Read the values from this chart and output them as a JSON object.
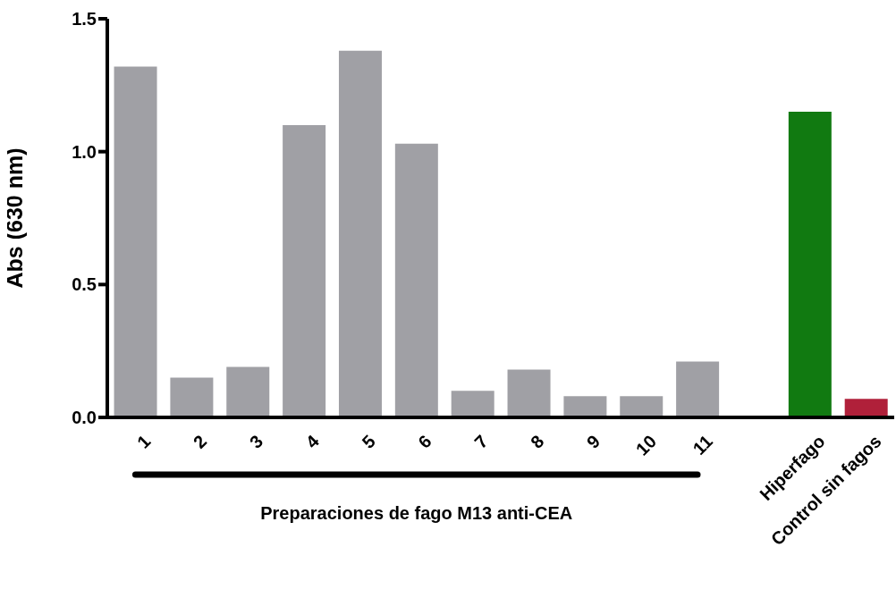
{
  "chart_data": {
    "type": "bar",
    "ylabel": "Abs (630 nm)",
    "categories": [
      "1",
      "2",
      "3",
      "4",
      "5",
      "6",
      "7",
      "8",
      "9",
      "10",
      "11",
      null,
      "Hiperfago",
      "Control sin fagos"
    ],
    "values": [
      1.32,
      0.15,
      0.19,
      1.1,
      1.38,
      1.03,
      0.1,
      0.18,
      0.08,
      0.08,
      0.21,
      null,
      1.15,
      0.07
    ],
    "colors": [
      "#a0a0a5",
      "#a0a0a5",
      "#a0a0a5",
      "#a0a0a5",
      "#a0a0a5",
      "#a0a0a5",
      "#a0a0a5",
      "#a0a0a5",
      "#a0a0a5",
      "#a0a0a5",
      "#a0a0a5",
      "#a0a0a5",
      "#117a11",
      "#b0203a"
    ],
    "ylim": [
      0,
      1.5
    ],
    "yticks": [
      {
        "value": 0,
        "label": "0.0"
      },
      {
        "value": 0.5,
        "label": "0.5"
      },
      {
        "value": 1,
        "label": "1.0"
      },
      {
        "value": 1.5,
        "label": "1.5"
      }
    ],
    "annotations": [
      "Preparaciones de fago M13 anti-CEA"
    ],
    "grid": false,
    "legend": false
  }
}
